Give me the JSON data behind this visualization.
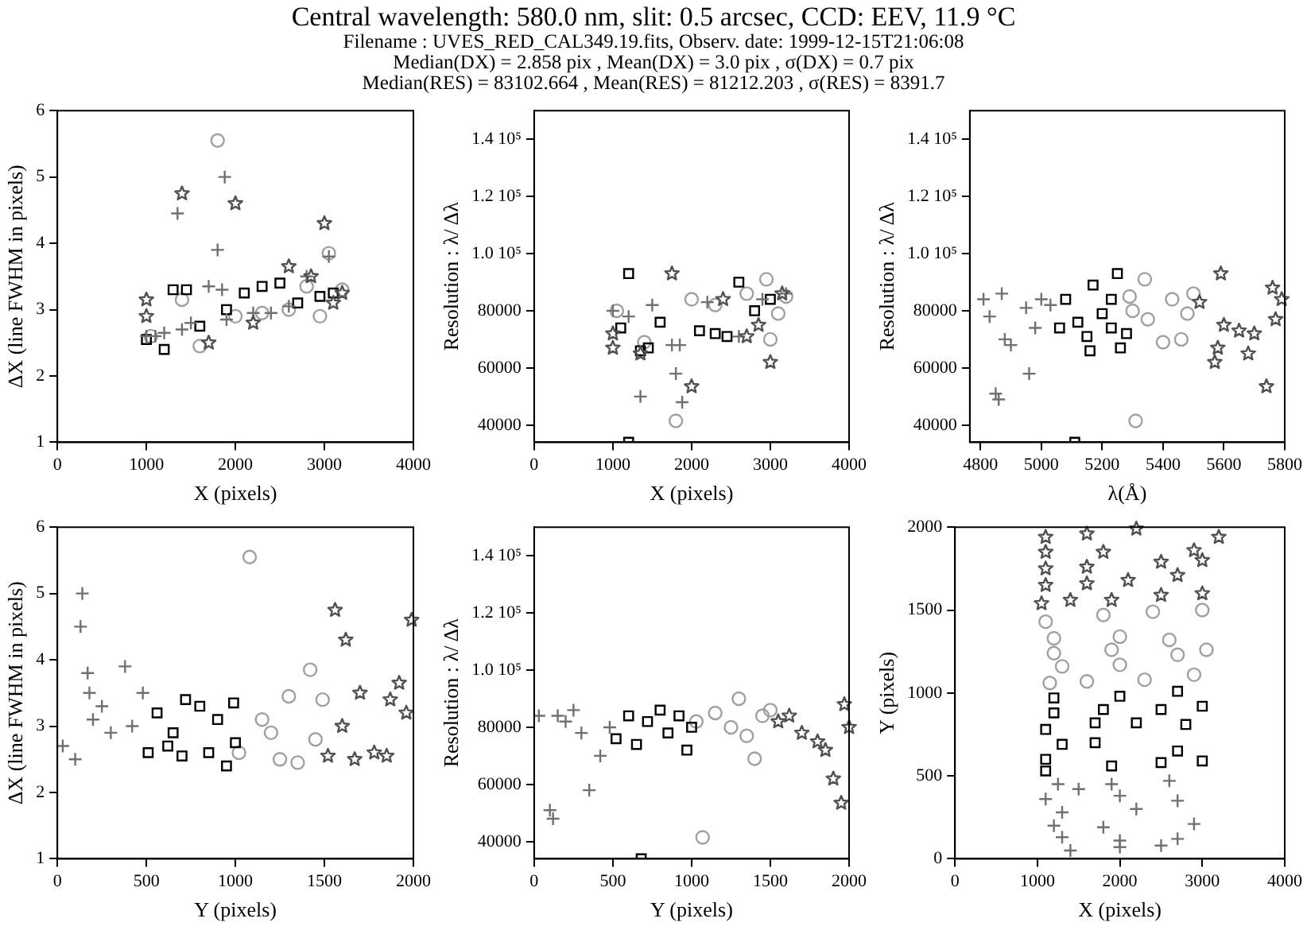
{
  "chart_data": [
    {
      "type": "scatter",
      "title": "Central wavelength: 580.0 nm, slit: 0.5 arcsec, CCD: EEV, 11.9 °C\nFilename : UVES_RED_CAL349.19.fits, Observ. date: 1999-12-15T21:06:08\nMedian(DX) = 2.858 pix , Mean(DX) = 3.0 pix , σ(DX) = 0.7 pix\nMedian(RES) = 83102.664 , Mean(RES) = 81212.203 , σ(RES) = 8391.7",
      "xlabel": "X (pixels)",
      "ylabel": "ΔX (line FWHM in pixels)",
      "xlim": [
        0,
        4000
      ],
      "xticks": [
        0,
        1000,
        2000,
        3000,
        4000
      ],
      "ylim": [
        1,
        6
      ],
      "yticks": [
        1,
        2,
        3,
        4,
        5,
        6
      ],
      "grid": false,
      "legend": false,
      "series": [
        {
          "marker": "cross",
          "color": "#707070",
          "x": [
            1000,
            1100,
            1200,
            1350,
            1400,
            1500,
            1700,
            1800,
            1850,
            1880,
            1900,
            2200,
            2400,
            2600,
            2800,
            3050
          ],
          "values": [
            2.6,
            2.6,
            2.65,
            4.45,
            2.7,
            2.8,
            3.35,
            3.9,
            3.3,
            5.0,
            2.85,
            2.95,
            2.95,
            3.05,
            3.5,
            3.8
          ]
        },
        {
          "marker": "square",
          "color": "#000000",
          "x": [
            1000,
            1200,
            1300,
            1450,
            1600,
            1900,
            2100,
            2300,
            2500,
            2700,
            2950,
            3100
          ],
          "values": [
            2.55,
            2.4,
            3.3,
            3.3,
            2.75,
            3.0,
            3.25,
            3.35,
            3.4,
            3.1,
            3.2,
            3.25
          ]
        },
        {
          "marker": "circle",
          "color": "#a0a0a0",
          "x": [
            1050,
            1400,
            1600,
            1800,
            2000,
            2300,
            2600,
            2800,
            2950,
            3050,
            3200
          ],
          "values": [
            2.6,
            3.15,
            2.45,
            5.55,
            2.9,
            2.95,
            3.0,
            3.35,
            2.9,
            3.85,
            3.3
          ]
        },
        {
          "marker": "star",
          "color": "#505050",
          "x": [
            1000,
            1000,
            1400,
            1700,
            2000,
            2200,
            2600,
            2850,
            3000,
            3100,
            3200
          ],
          "values": [
            3.15,
            2.9,
            4.75,
            2.5,
            4.6,
            2.8,
            3.65,
            3.5,
            4.3,
            3.1,
            3.25
          ]
        }
      ]
    },
    {
      "type": "scatter",
      "xlabel": "X (pixels)",
      "ylabel": "Resolution : λ/ Δλ",
      "xlim": [
        0,
        4000
      ],
      "xticks": [
        0,
        1000,
        2000,
        3000,
        4000
      ],
      "ylim": [
        34000,
        150000
      ],
      "yticks": [
        40000,
        60000,
        80000,
        {
          "value": 100000,
          "label": "1.0 10⁵"
        },
        {
          "value": 120000,
          "label": "1.2 10⁵"
        },
        {
          "value": 140000,
          "label": "1.4 10⁵"
        }
      ],
      "grid": false,
      "legend": false,
      "series": [
        {
          "marker": "cross",
          "color": "#707070",
          "x": [
            1000,
            1200,
            1350,
            1500,
            1750,
            1800,
            1850,
            1880,
            2200,
            2600,
            2900,
            3200
          ],
          "values": [
            80000,
            78000,
            50000,
            82000,
            68000,
            58000,
            68000,
            48000,
            83000,
            71000,
            84000,
            86000
          ]
        },
        {
          "marker": "square",
          "color": "#000000",
          "x": [
            1100,
            1200,
            1200,
            1350,
            1450,
            1600,
            2100,
            2300,
            2450,
            2600,
            2800,
            3000
          ],
          "values": [
            74000,
            93000,
            34000,
            66000,
            67000,
            76000,
            73000,
            72000,
            71000,
            90000,
            80000,
            84000
          ]
        },
        {
          "marker": "circle",
          "color": "#a0a0a0",
          "x": [
            1050,
            1400,
            1800,
            2000,
            2300,
            2700,
            2950,
            3000,
            3100,
            3200
          ],
          "values": [
            80000,
            69000,
            41500,
            84000,
            82000,
            86000,
            91000,
            70000,
            79000,
            85000
          ]
        },
        {
          "marker": "star",
          "color": "#505050",
          "x": [
            1000,
            1000,
            1350,
            1750,
            2000,
            2400,
            2700,
            2850,
            3000,
            3150
          ],
          "values": [
            72000,
            67000,
            65000,
            93000,
            53500,
            84000,
            71000,
            75000,
            62000,
            86000
          ]
        }
      ]
    },
    {
      "type": "scatter",
      "xlabel": "λ(Å)",
      "ylabel": "Resolution : λ/ Δλ",
      "xlim": [
        4765,
        5800
      ],
      "xticks": [
        4800,
        5000,
        5200,
        5400,
        5600,
        5800
      ],
      "ylim": [
        34000,
        150000
      ],
      "yticks": [
        40000,
        60000,
        80000,
        {
          "value": 100000,
          "label": "1.0 10⁵"
        },
        {
          "value": 120000,
          "label": "1.2 10⁵"
        },
        {
          "value": 140000,
          "label": "1.4 10⁵"
        }
      ],
      "grid": false,
      "legend": false,
      "series": [
        {
          "marker": "cross",
          "color": "#707070",
          "x": [
            4810,
            4830,
            4850,
            4860,
            4870,
            4880,
            4900,
            4950,
            4960,
            4980,
            5000,
            5030
          ],
          "values": [
            84000,
            78000,
            51000,
            49000,
            86000,
            70000,
            68000,
            81000,
            58000,
            74000,
            84000,
            82000
          ]
        },
        {
          "marker": "square",
          "color": "#000000",
          "x": [
            5060,
            5080,
            5110,
            5120,
            5150,
            5160,
            5170,
            5200,
            5230,
            5230,
            5250,
            5260,
            5280
          ],
          "values": [
            74000,
            84000,
            34000,
            76000,
            71000,
            66000,
            89000,
            79000,
            74000,
            84000,
            93000,
            67000,
            72000
          ]
        },
        {
          "marker": "circle",
          "color": "#a0a0a0",
          "x": [
            5290,
            5300,
            5310,
            5340,
            5350,
            5400,
            5430,
            5460,
            5480,
            5500
          ],
          "values": [
            85000,
            80000,
            41500,
            91000,
            77000,
            69000,
            84000,
            70000,
            79000,
            86000
          ]
        },
        {
          "marker": "star",
          "color": "#505050",
          "x": [
            5520,
            5570,
            5580,
            5590,
            5600,
            5650,
            5680,
            5700,
            5740,
            5760,
            5770,
            5790
          ],
          "values": [
            83000,
            62000,
            67000,
            93000,
            75000,
            73000,
            65000,
            72000,
            53500,
            88000,
            77000,
            84000
          ]
        }
      ]
    },
    {
      "type": "scatter",
      "xlabel": "Y (pixels)",
      "ylabel": "ΔX (line FWHM in pixels)",
      "xlim": [
        0,
        2000
      ],
      "xticks": [
        0,
        500,
        1000,
        1500,
        2000
      ],
      "ylim": [
        1,
        6
      ],
      "yticks": [
        1,
        2,
        3,
        4,
        5,
        6
      ],
      "grid": false,
      "legend": false,
      "series": [
        {
          "marker": "cross",
          "color": "#707070",
          "x": [
            30,
            100,
            130,
            140,
            170,
            180,
            200,
            250,
            300,
            380,
            420,
            480
          ],
          "values": [
            2.7,
            2.5,
            4.5,
            5.0,
            3.8,
            3.5,
            3.1,
            3.3,
            2.9,
            3.9,
            3.0,
            3.5
          ]
        },
        {
          "marker": "square",
          "color": "#000000",
          "x": [
            510,
            560,
            620,
            650,
            700,
            720,
            800,
            850,
            900,
            950,
            990,
            1000
          ],
          "values": [
            2.6,
            3.2,
            2.7,
            2.9,
            2.55,
            3.4,
            3.3,
            2.6,
            3.1,
            2.4,
            3.35,
            2.75
          ]
        },
        {
          "marker": "circle",
          "color": "#a0a0a0",
          "x": [
            1020,
            1080,
            1150,
            1200,
            1250,
            1300,
            1350,
            1420,
            1450,
            1490
          ],
          "values": [
            2.6,
            5.55,
            3.1,
            2.9,
            2.5,
            3.45,
            2.45,
            3.85,
            2.8,
            3.4
          ]
        },
        {
          "marker": "star",
          "color": "#505050",
          "x": [
            1520,
            1560,
            1600,
            1620,
            1670,
            1700,
            1780,
            1850,
            1870,
            1920,
            1960,
            1990
          ],
          "values": [
            2.55,
            4.75,
            3.0,
            4.3,
            2.5,
            3.5,
            2.6,
            2.55,
            3.4,
            3.65,
            3.2,
            4.6
          ]
        }
      ]
    },
    {
      "type": "scatter",
      "xlabel": "Y (pixels)",
      "ylabel": "Resolution : λ/ Δλ",
      "xlim": [
        0,
        2000
      ],
      "xticks": [
        0,
        500,
        1000,
        1500,
        2000
      ],
      "ylim": [
        34000,
        150000
      ],
      "yticks": [
        40000,
        60000,
        80000,
        {
          "value": 100000,
          "label": "1.0 10⁵"
        },
        {
          "value": 120000,
          "label": "1.2 10⁵"
        },
        {
          "value": 140000,
          "label": "1.4 10⁵"
        }
      ],
      "grid": false,
      "legend": false,
      "series": [
        {
          "marker": "cross",
          "color": "#707070",
          "x": [
            30,
            100,
            120,
            150,
            200,
            250,
            300,
            350,
            420,
            480
          ],
          "values": [
            84000,
            51000,
            48000,
            84000,
            82000,
            86000,
            78000,
            58000,
            70000,
            80000
          ]
        },
        {
          "marker": "square",
          "color": "#000000",
          "x": [
            520,
            600,
            650,
            680,
            720,
            800,
            850,
            920,
            970,
            1000
          ],
          "values": [
            76000,
            84000,
            74000,
            34000,
            82000,
            86000,
            78000,
            84000,
            72000,
            80000
          ]
        },
        {
          "marker": "circle",
          "color": "#a0a0a0",
          "x": [
            1030,
            1070,
            1150,
            1250,
            1300,
            1350,
            1400,
            1450,
            1500
          ],
          "values": [
            82000,
            41500,
            85000,
            80000,
            90000,
            77000,
            69000,
            84000,
            86000
          ]
        },
        {
          "marker": "star",
          "color": "#505050",
          "x": [
            1550,
            1620,
            1700,
            1800,
            1850,
            1900,
            1950,
            1970,
            2000
          ],
          "values": [
            82000,
            84000,
            78000,
            75000,
            72000,
            62000,
            53500,
            88000,
            80000
          ]
        }
      ]
    },
    {
      "type": "scatter",
      "xlabel": "X (pixels)",
      "ylabel": "Y (pixels)",
      "xlim": [
        0,
        4000
      ],
      "xticks": [
        0,
        1000,
        2000,
        3000,
        4000
      ],
      "ylim": [
        0,
        2000
      ],
      "yticks": [
        0,
        500,
        1000,
        1500,
        2000
      ],
      "grid": false,
      "legend": false,
      "series": [
        {
          "marker": "cross",
          "color": "#707070",
          "x": [
            1250,
            1500,
            1900,
            2600,
            1100,
            2000,
            2700,
            1300,
            2200,
            1200,
            1800,
            2900,
            1300,
            2000,
            2700,
            1400,
            2000,
            2500
          ],
          "values": [
            450,
            420,
            450,
            470,
            360,
            380,
            350,
            280,
            300,
            200,
            190,
            210,
            130,
            110,
            120,
            50,
            70,
            80
          ]
        },
        {
          "marker": "square",
          "color": "#000000",
          "x": [
            1100,
            1900,
            2500,
            3000,
            1100,
            1300,
            1700,
            2700,
            1100,
            1700,
            2200,
            2800,
            1200,
            1800,
            2500,
            3000,
            1200,
            2000,
            2700
          ],
          "values": [
            530,
            560,
            580,
            590,
            600,
            690,
            700,
            650,
            780,
            820,
            820,
            810,
            880,
            900,
            900,
            920,
            970,
            980,
            1010
          ]
        },
        {
          "marker": "circle",
          "color": "#a0a0a0",
          "x": [
            1150,
            1600,
            2300,
            2900,
            1300,
            2000,
            2700,
            1200,
            1900,
            3050,
            1200,
            2000,
            2600,
            1100,
            1800,
            2400,
            3000
          ],
          "values": [
            1060,
            1070,
            1080,
            1110,
            1160,
            1170,
            1230,
            1240,
            1260,
            1260,
            1330,
            1340,
            1320,
            1430,
            1470,
            1490,
            1500
          ]
        },
        {
          "marker": "star",
          "color": "#505050",
          "x": [
            1050,
            1400,
            1900,
            2500,
            3000,
            1100,
            1600,
            2100,
            2700,
            1100,
            1600,
            2500,
            3000,
            1100,
            1800,
            2900,
            1100,
            1600,
            2200,
            3200
          ],
          "values": [
            1540,
            1560,
            1560,
            1590,
            1600,
            1650,
            1660,
            1680,
            1710,
            1750,
            1760,
            1790,
            1800,
            1850,
            1850,
            1860,
            1940,
            1960,
            1990,
            1940
          ]
        }
      ]
    }
  ]
}
